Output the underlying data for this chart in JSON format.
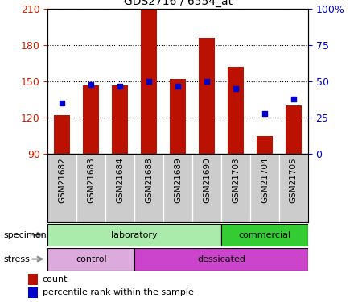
{
  "title": "GDS2716 / 6554_at",
  "samples": [
    "GSM21682",
    "GSM21683",
    "GSM21684",
    "GSM21688",
    "GSM21689",
    "GSM21690",
    "GSM21703",
    "GSM21704",
    "GSM21705"
  ],
  "counts": [
    122,
    147,
    147,
    210,
    152,
    186,
    162,
    105,
    130
  ],
  "percentile_ranks": [
    35,
    48,
    47,
    50,
    47,
    50,
    45,
    28,
    38
  ],
  "y_min": 90,
  "y_max": 210,
  "y_ticks": [
    90,
    120,
    150,
    180,
    210
  ],
  "y2_ticks": [
    0,
    25,
    50,
    75,
    100
  ],
  "bar_color": "#bb1100",
  "dot_color": "#0000cc",
  "specimen_groups": [
    {
      "label": "laboratory",
      "start": 0,
      "end": 6,
      "color": "#aaeaaa"
    },
    {
      "label": "commercial",
      "start": 6,
      "end": 9,
      "color": "#33cc33"
    }
  ],
  "stress_groups": [
    {
      "label": "control",
      "start": 0,
      "end": 3,
      "color": "#ddaadd"
    },
    {
      "label": "dessicated",
      "start": 3,
      "end": 9,
      "color": "#cc44cc"
    }
  ],
  "specimen_label": "specimen",
  "stress_label": "stress",
  "legend_count": "count",
  "legend_percentile": "percentile rank within the sample",
  "background_color": "#ffffff",
  "plot_bg_color": "#ffffff",
  "grid_color": "#000000",
  "tick_label_color_left": "#cc2200",
  "tick_label_color_right": "#0000cc",
  "xtick_bg_color": "#cccccc",
  "arrow_color": "#888888"
}
